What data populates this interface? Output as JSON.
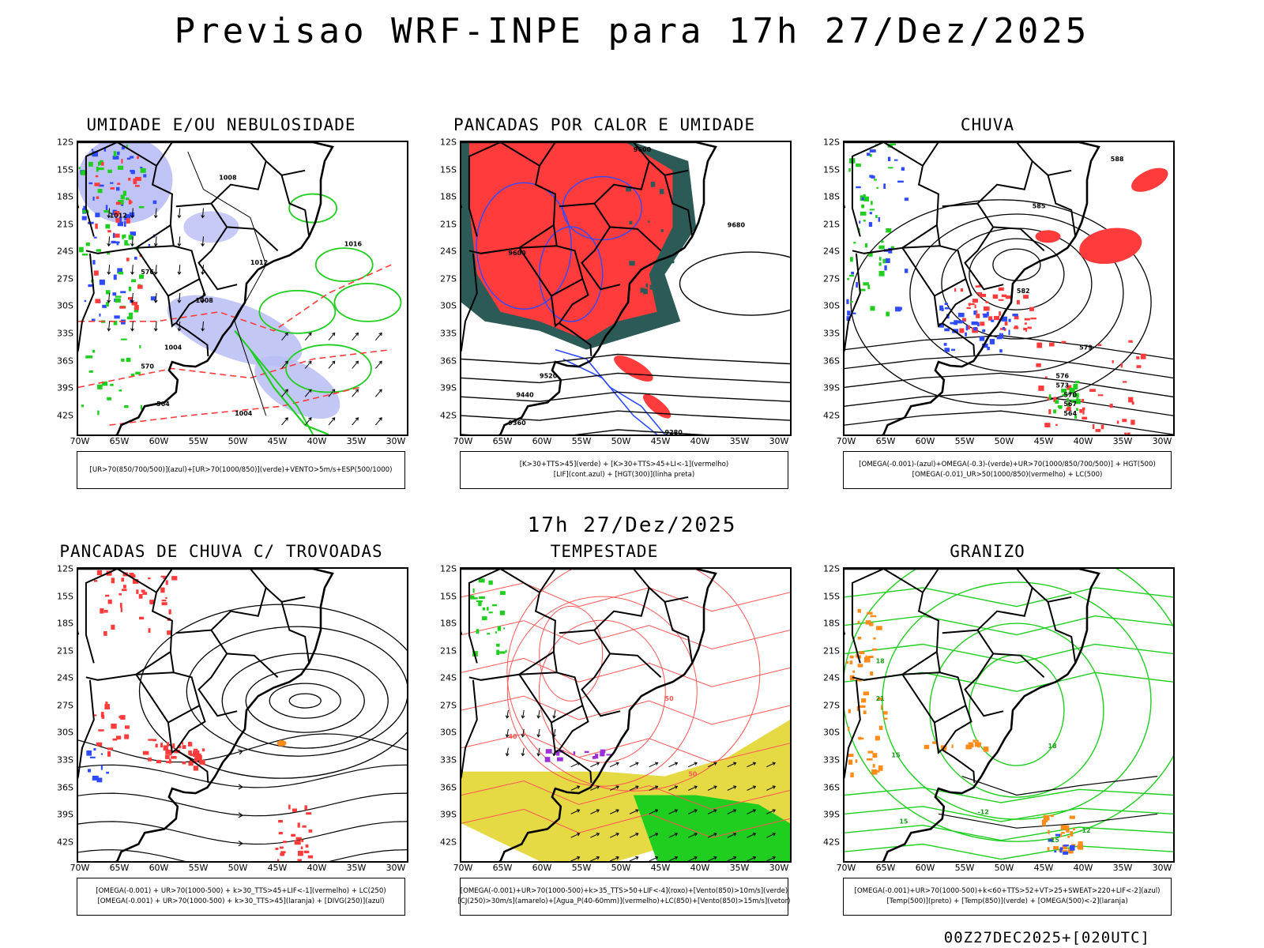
{
  "header": {
    "title": "Previsao WRF-INPE  para 17h 27/Dez/2025",
    "mid_title": "17h 27/Dez/2025"
  },
  "axes": {
    "lat_labels": [
      "12S",
      "15S",
      "18S",
      "21S",
      "24S",
      "27S",
      "30S",
      "33S",
      "36S",
      "39S",
      "42S"
    ],
    "lon_labels": [
      "70W",
      "65W",
      "60W",
      "55W",
      "50W",
      "45W",
      "40W",
      "35W",
      "30W"
    ]
  },
  "colors": {
    "red": "#ff3b3b",
    "blue": "#2e4bff",
    "green": "#1fce1f",
    "lavender": "#b9bdf5",
    "dark_teal": "#2c5a57",
    "yellow": "#e4d83a",
    "orange": "#ff8c1a",
    "purple": "#9b30d9",
    "contour_red": "#ff5555"
  },
  "panels": [
    {
      "title": "UMIDADE E/OU NEBULOSIDADE",
      "legend": [
        "[UR>70(850/700/500)](azul)+[UR>70(1000/850)](verde)+VENTO>5m/s+ESP(500/1000)"
      ],
      "contour_labels": [
        "1008",
        "1012",
        "1016",
        "1012",
        "1008",
        "1004",
        "1004",
        "576",
        "570",
        "564"
      ]
    },
    {
      "title": "PANCADAS POR CALOR E UMIDADE",
      "legend": [
        "[K>30+TTS>45](verde) + [K>30+TTS>45+LI<-1](vermelho)",
        "[LIF](cont.azul) + [HGT(300)](linha preta)"
      ],
      "contour_labels": [
        "9600",
        "9680",
        "9600",
        "9520",
        "9440",
        "9360",
        "9280"
      ]
    },
    {
      "title": "CHUVA",
      "legend": [
        "[OMEGA(-0.001)-(azul)+OMEGA(-0.3)-(verde)+UR>70(1000/850/700/500)] + HGT(500)",
        "[OMEGA(-0.01)_UR>50(1000/850)(vermelho) + LC(500)"
      ],
      "contour_labels": [
        "588",
        "585",
        "582",
        "579",
        "576",
        "573",
        "570",
        "567",
        "564"
      ]
    },
    {
      "title": "PANCADAS DE CHUVA C/ TROVOADAS",
      "legend": [
        "[OMEGA(-0.001) + UR>70(1000-500) + k>30_TTS>45+LIF<-1](vermelho) + LC(250)",
        "[OMEGA(-0.001) + UR>70(1000-500) + k>30_TTS>45](laranja) + [DIVG(250)](azul)"
      ],
      "contour_labels": []
    },
    {
      "title": "TEMPESTADE",
      "legend": [
        "[OMEGA(-0.001)+UR>70(1000-500)+k>35_TTS>50+LIF<-4](roxo)+[Vento(850)>10m/s](verde)",
        "[CJ(250)>30m/s](amarelo)+[Agua_P(40-60mm)](vermelho)+LC(850)+[Vento(850)>15m/s](vetor)"
      ],
      "contour_labels": [
        "50",
        "50",
        "40"
      ]
    },
    {
      "title": "GRANIZO",
      "legend": [
        "[OMEGA(-0.001)+UR>70(1000-500)+k<60+TTS>52+VT>25+SWEAT>220+LIF<-2](azul)",
        "[Temp(500)](preto) + [Temp(850)](verde) + [OMEGA(500)<-2](laranja)"
      ],
      "contour_labels": [
        "18",
        "21",
        "15",
        "18",
        "15",
        "-12",
        "-12",
        "-15"
      ]
    }
  ],
  "footer": {
    "run_label": "00Z27DEC2025+[020UTC]"
  }
}
